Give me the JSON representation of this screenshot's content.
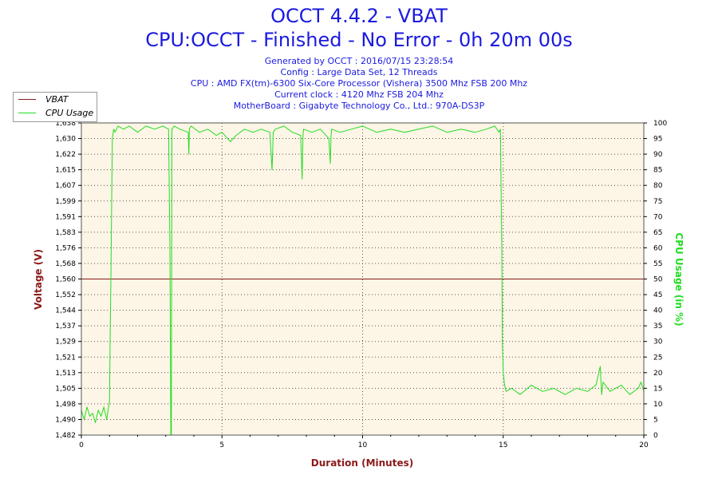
{
  "header": {
    "title_line1": "OCCT 4.4.2 - VBAT",
    "title_line2": "CPU:OCCT - Finished - No Error - 0h 20m 00s",
    "info": [
      "Generated by OCCT : 2016/07/15 23:28:54",
      "Config : Large Data Set, 12 Threads",
      "CPU : AMD FX(tm)-6300 Six-Core Processor (Vishera) 3500 Mhz FSB 200 Mhz",
      "Current clock : 4120 Mhz FSB 204 Mhz",
      "MotherBoard : Gigabyte Technology Co., Ltd.: 970A-DS3P"
    ]
  },
  "legend": {
    "items": [
      {
        "label": "VBAT",
        "color": "#8b1a1a"
      },
      {
        "label": "CPU Usage",
        "color": "#22dd22"
      }
    ]
  },
  "chart_data": {
    "type": "line",
    "xlabel": "Duration (Minutes)",
    "ylabel_left": "Voltage (V)",
    "ylabel_right": "CPU Usage (in %)",
    "xlim": [
      0,
      20
    ],
    "x_ticks": [
      "0",
      "5",
      "10",
      "15",
      "20"
    ],
    "ylim_left": [
      1.482,
      1.638
    ],
    "y_left_ticks": [
      "1,482",
      "1,490",
      "1,498",
      "1,505",
      "1,513",
      "1,521",
      "1,529",
      "1,537",
      "1,544",
      "1,552",
      "1,560",
      "1,568",
      "1,576",
      "1,583",
      "1,591",
      "1,599",
      "1,607",
      "1,615",
      "1,622",
      "1,630",
      "1,638"
    ],
    "ylim_right": [
      0,
      100
    ],
    "y_right_ticks": [
      "0",
      "5",
      "10",
      "15",
      "20",
      "25",
      "30",
      "35",
      "40",
      "45",
      "50",
      "55",
      "60",
      "65",
      "70",
      "75",
      "80",
      "85",
      "90",
      "95",
      "100"
    ],
    "grid": true,
    "legend_position": "top-left",
    "series": [
      {
        "name": "VBAT",
        "axis": "left",
        "color": "#8b1a1a",
        "x": [
          0,
          20
        ],
        "y": [
          1.56,
          1.56
        ]
      },
      {
        "name": "CPU Usage",
        "axis": "right",
        "color": "#22dd22",
        "x": [
          0,
          0.1,
          0.2,
          0.3,
          0.4,
          0.5,
          0.6,
          0.7,
          0.8,
          0.9,
          1.0,
          1.02,
          1.05,
          1.1,
          1.15,
          1.2,
          1.3,
          1.5,
          1.7,
          2.0,
          2.3,
          2.6,
          2.9,
          3.1,
          3.15,
          3.18,
          3.2,
          3.22,
          3.3,
          3.5,
          3.8,
          3.82,
          3.84,
          3.9,
          4.2,
          4.5,
          4.8,
          5.0,
          5.2,
          5.3,
          5.5,
          5.8,
          6.1,
          6.4,
          6.7,
          6.78,
          6.8,
          6.82,
          6.9,
          7.2,
          7.5,
          7.8,
          7.85,
          7.88,
          7.9,
          8.2,
          8.5,
          8.8,
          8.85,
          8.88,
          8.9,
          9.2,
          9.6,
          10.0,
          10.5,
          11.0,
          11.5,
          12.0,
          12.5,
          13.0,
          13.5,
          14.0,
          14.4,
          14.7,
          14.85,
          14.9,
          14.95,
          14.97,
          15.0,
          15.05,
          15.1,
          15.3,
          15.6,
          16.0,
          16.4,
          16.8,
          17.2,
          17.6,
          18.0,
          18.3,
          18.45,
          18.5,
          18.55,
          18.8,
          19.2,
          19.5,
          19.8,
          19.9,
          20.0
        ],
        "y": [
          8,
          5,
          9,
          6,
          7,
          4,
          8,
          6,
          9,
          5,
          11,
          30,
          50,
          95,
          98,
          97,
          99,
          98,
          99,
          97,
          99,
          98,
          99,
          98,
          60,
          0,
          0,
          98,
          99,
          98,
          97,
          90,
          98,
          99,
          97,
          98,
          96,
          97,
          95,
          94,
          96,
          98,
          97,
          98,
          97,
          85,
          90,
          97,
          98,
          99,
          97,
          96,
          82,
          96,
          98,
          97,
          98,
          95,
          87,
          96,
          98,
          97,
          98,
          99,
          97,
          98,
          97,
          98,
          99,
          97,
          98,
          97,
          98,
          99,
          97,
          98,
          60,
          30,
          20,
          16,
          14,
          15,
          13,
          16,
          14,
          15,
          13,
          15,
          14,
          16,
          22,
          13,
          17,
          14,
          16,
          13,
          15,
          17,
          14
        ]
      }
    ]
  }
}
